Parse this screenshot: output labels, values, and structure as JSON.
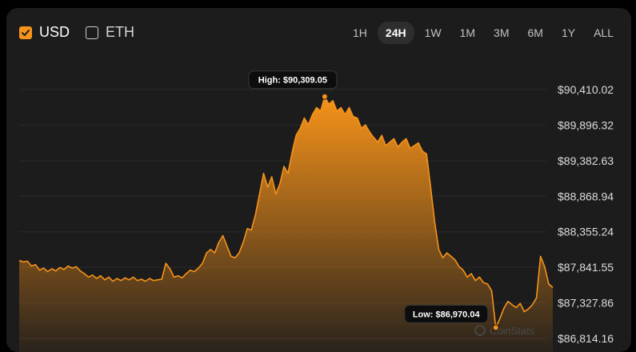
{
  "currency_toggles": [
    {
      "label": "USD",
      "checked": true
    },
    {
      "label": "ETH",
      "checked": false
    }
  ],
  "time_ranges": [
    "1H",
    "24H",
    "1W",
    "1M",
    "3M",
    "6M",
    "1Y",
    "ALL"
  ],
  "active_range": "24H",
  "watermark": "CoinStats",
  "colors": {
    "accent": "#f7931a",
    "background": "#1c1c1c"
  },
  "chart_data": {
    "type": "area",
    "title": "",
    "xlabel": "",
    "ylabel": "",
    "y_axis_position": "right",
    "y_ticks": [
      {
        "value": 90410.02,
        "label": "$90,410.02"
      },
      {
        "value": 89896.32,
        "label": "$89,896.32"
      },
      {
        "value": 89382.63,
        "label": "$89,382.63"
      },
      {
        "value": 88868.94,
        "label": "$88,868.94"
      },
      {
        "value": 88355.24,
        "label": "$88,355.24"
      },
      {
        "value": 87841.55,
        "label": "$87,841.55"
      },
      {
        "value": 87327.86,
        "label": "$87,327.86"
      },
      {
        "value": 86814.16,
        "label": "$86,814.16"
      }
    ],
    "ylim": [
      86814.16,
      90410.02
    ],
    "high_label": "High: $90,309.05",
    "low_label": "Low: $86,970.04",
    "high_value": 90309.05,
    "low_value": 86970.04,
    "grid": true,
    "series": [
      {
        "values": [
          87940,
          87920,
          87930,
          87860,
          87880,
          87800,
          87830,
          87780,
          87820,
          87790,
          87840,
          87810,
          87860,
          87830,
          87850,
          87790,
          87750,
          87700,
          87730,
          87680,
          87720,
          87660,
          87700,
          87640,
          87680,
          87650,
          87690,
          87660,
          87700,
          87650,
          87670,
          87640,
          87680,
          87650,
          87660,
          87670,
          87900,
          87820,
          87700,
          87720,
          87690,
          87750,
          87800,
          87780,
          87830,
          87900,
          88050,
          88100,
          88050,
          88200,
          88300,
          88150,
          88000,
          87980,
          88050,
          88200,
          88400,
          88380,
          88600,
          88900,
          89200,
          89000,
          89150,
          88900,
          89050,
          89300,
          89200,
          89500,
          89750,
          89850,
          90000,
          89900,
          90050,
          90150,
          90100,
          90309.05,
          90200,
          90250,
          90100,
          90150,
          90050,
          90150,
          90020,
          90000,
          89850,
          89900,
          89800,
          89720,
          89650,
          89750,
          89600,
          89650,
          89700,
          89580,
          89650,
          89700,
          89560,
          89600,
          89640,
          89520,
          89480,
          89000,
          88500,
          88100,
          87980,
          88050,
          88000,
          87950,
          87850,
          87800,
          87700,
          87750,
          87650,
          87700,
          87620,
          87600,
          87500,
          86970.04,
          87100,
          87250,
          87350,
          87300,
          87260,
          87320,
          87200,
          87240,
          87300,
          87400,
          88000,
          87850,
          87600,
          87550
        ]
      }
    ]
  }
}
